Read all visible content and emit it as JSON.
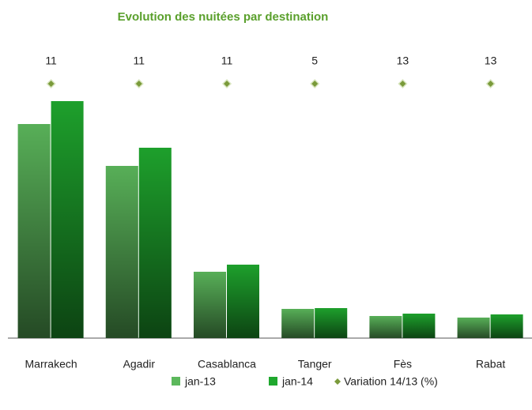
{
  "chart_data": {
    "type": "bar",
    "title": "Evolution des nuitées par destination",
    "categories": [
      "Marrakech",
      "Agadir",
      "Casablanca",
      "Tanger",
      "Fès",
      "Rabat"
    ],
    "series": [
      {
        "name": "jan-13",
        "color": "#5cb85c",
        "values": [
          271,
          218,
          84,
          37,
          28,
          26
        ]
      },
      {
        "name": "jan-14",
        "color": "#1fa82e",
        "values": [
          300,
          241,
          93,
          38,
          31,
          30
        ]
      },
      {
        "name": "Variation 14/13 (%)",
        "color": "#7a9a3a",
        "type": "marker",
        "values": [
          11,
          11,
          11,
          5,
          13,
          13
        ]
      }
    ],
    "ylim": [
      0,
      330
    ],
    "grid": false,
    "legend": "bottom"
  }
}
